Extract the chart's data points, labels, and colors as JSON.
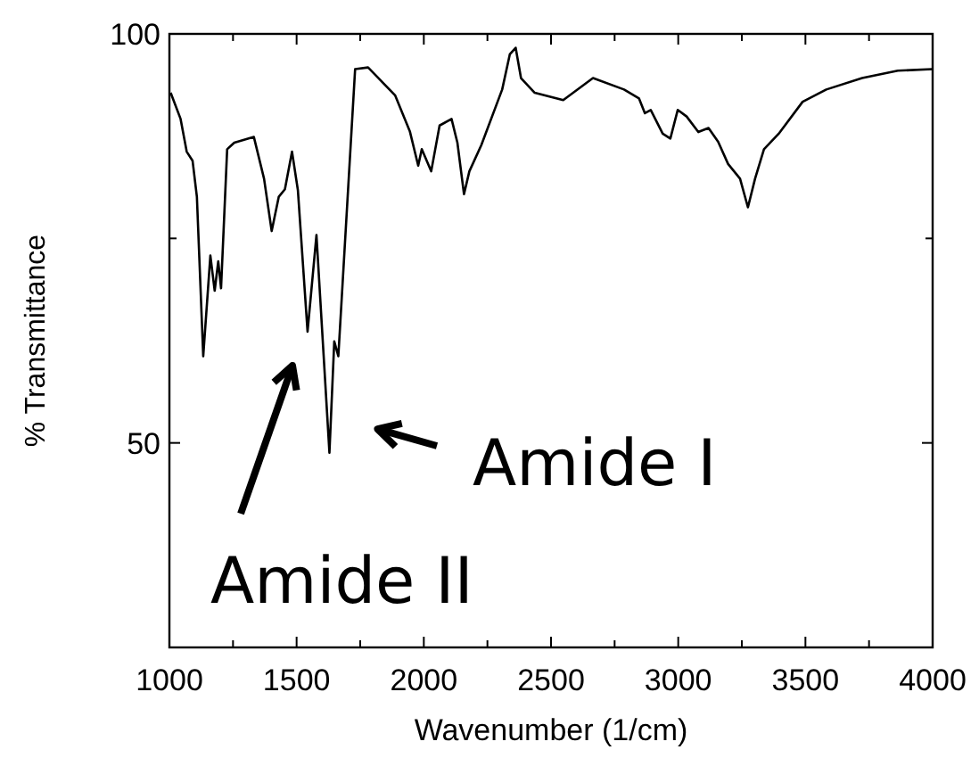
{
  "chart_data": {
    "type": "line",
    "xlabel": "Wavenumber (1/cm)",
    "ylabel": "% Transmittance",
    "xlim": [
      1000,
      4000
    ],
    "ylim": [
      25,
      100
    ],
    "xticks": [
      1000,
      {
        "value": 1250,
        "label": null
      },
      1500,
      {
        "value": 1750,
        "label": null
      },
      2000,
      {
        "value": 2250,
        "label": null
      },
      2500,
      {
        "value": 2750,
        "label": null
      },
      3000,
      {
        "value": 3250,
        "label": null
      },
      3500,
      {
        "value": 3750,
        "label": null
      },
      4000
    ],
    "yticks": [
      {
        "value": 25,
        "label": null
      },
      50,
      {
        "value": 75,
        "label": null
      },
      100
    ],
    "grid": false,
    "line_style": "solid",
    "annotations": [
      {
        "text": "Amide I",
        "x": 1650,
        "y": 53
      },
      "Amide II"
    ],
    "series": [
      {
        "color": "#000000",
        "x": [
          1005,
          1044,
          1068,
          1091,
          1108,
          1133,
          1161,
          1178,
          1192,
          1203,
          1227,
          1255,
          1332,
          1372,
          1402,
          1430,
          1454,
          1482,
          1505,
          1543,
          1578,
          1629,
          1648,
          1664,
          1730,
          1781,
          1887,
          1945,
          1978,
          1992,
          2029,
          2062,
          2109,
          2132,
          2158,
          2179,
          2226,
          2308,
          2338,
          2361,
          2382,
          2436,
          2548,
          2665,
          2787,
          2846,
          2869,
          2892,
          2939,
          2969,
          2998,
          3033,
          3079,
          3119,
          3157,
          3196,
          3243,
          3274,
          3302,
          3337,
          3395,
          3489,
          3582,
          3723,
          3863,
          3999
        ],
        "values": [
          92.8,
          89.6,
          85.6,
          84.5,
          80.1,
          60.6,
          72.9,
          68.6,
          72.2,
          68.9,
          85.9,
          86.7,
          87.4,
          82.3,
          75.9,
          80.1,
          81.0,
          85.6,
          80.9,
          63.6,
          75.4,
          48.8,
          62.4,
          60.6,
          95.7,
          95.9,
          92.5,
          88.1,
          83.9,
          85.9,
          83.2,
          88.8,
          89.6,
          86.7,
          80.4,
          83.2,
          86.4,
          93.2,
          97.5,
          98.3,
          94.6,
          92.8,
          91.9,
          94.6,
          93.2,
          92.1,
          90.3,
          90.7,
          87.8,
          87.2,
          90.7,
          89.9,
          88.0,
          88.5,
          86.8,
          84.1,
          82.3,
          78.8,
          82.3,
          85.9,
          87.8,
          91.7,
          93.2,
          94.6,
          95.5,
          95.7
        ]
      }
    ]
  }
}
